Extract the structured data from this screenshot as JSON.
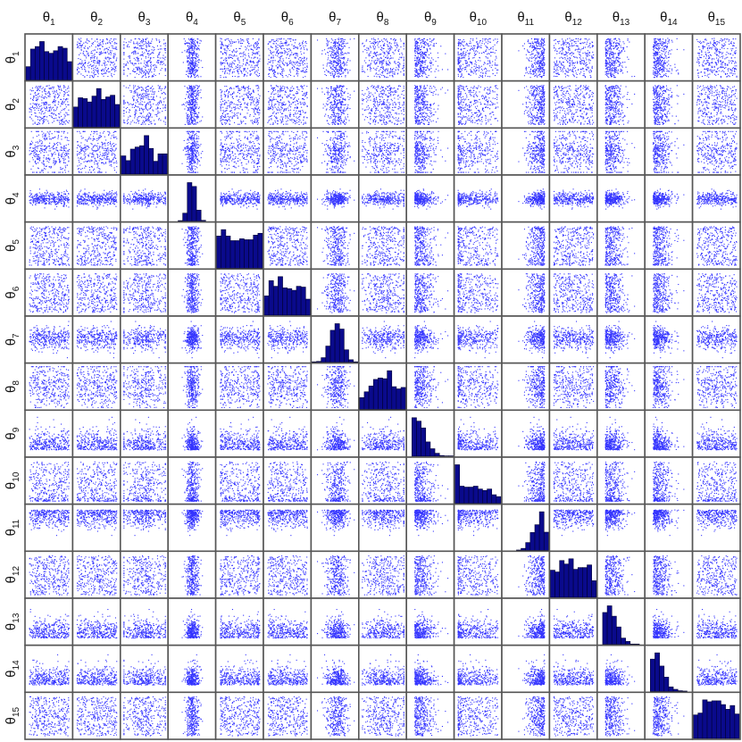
{
  "chart_data": {
    "type": "scatter",
    "layout": "scatter-matrix",
    "variables": [
      {
        "symbol": "θ",
        "sub": "1",
        "distribution": "uniform"
      },
      {
        "symbol": "θ",
        "sub": "2",
        "distribution": "uniform"
      },
      {
        "symbol": "θ",
        "sub": "3",
        "distribution": "mound"
      },
      {
        "symbol": "θ",
        "sub": "4",
        "distribution": "narrow-normal"
      },
      {
        "symbol": "θ",
        "sub": "5",
        "distribution": "uniform"
      },
      {
        "symbol": "θ",
        "sub": "6",
        "distribution": "uniform"
      },
      {
        "symbol": "θ",
        "sub": "7",
        "distribution": "normal"
      },
      {
        "symbol": "θ",
        "sub": "8",
        "distribution": "mound"
      },
      {
        "symbol": "θ",
        "sub": "9",
        "distribution": "skew-left-peak"
      },
      {
        "symbol": "θ",
        "sub": "10",
        "distribution": "skew-decreasing"
      },
      {
        "symbol": "θ",
        "sub": "11",
        "distribution": "skew-right-peak"
      },
      {
        "symbol": "θ",
        "sub": "12",
        "distribution": "uniform"
      },
      {
        "symbol": "θ",
        "sub": "13",
        "distribution": "skew-left-peak"
      },
      {
        "symbol": "θ",
        "sub": "14",
        "distribution": "skew-left-peak"
      },
      {
        "symbol": "θ",
        "sub": "15",
        "distribution": "uniform"
      }
    ],
    "diagonal": "histogram",
    "off_diagonal": "scatter",
    "points_per_panel": 340,
    "histogram_bins": 10,
    "colors": {
      "points": "#3333ff",
      "histogram_fill": "#0a0a8c",
      "histogram_edge": "#000033",
      "panel_border": "#555555"
    },
    "grid": false,
    "legend": "none"
  }
}
